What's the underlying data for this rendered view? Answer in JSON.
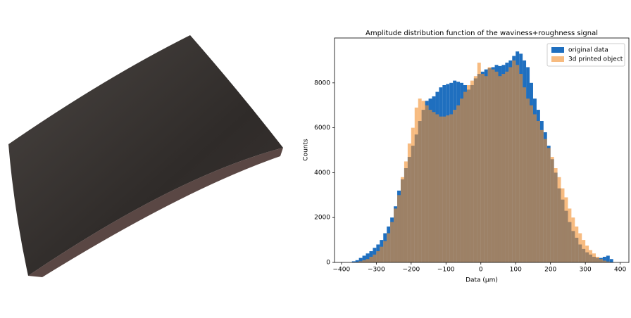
{
  "chart_data": {
    "type": "histogram",
    "title": "Amplitude distribution function of the waviness+roughness signal",
    "xlabel": "Data (μm)",
    "ylabel": "Counts",
    "bins": [
      -370,
      -360,
      -350,
      -340,
      -330,
      -320,
      -310,
      -300,
      -290,
      -280,
      -270,
      -260,
      -250,
      -240,
      -230,
      -220,
      -210,
      -200,
      -190,
      -180,
      -170,
      -160,
      -150,
      -140,
      -130,
      -120,
      -110,
      -100,
      -90,
      -80,
      -70,
      -60,
      -50,
      -40,
      -30,
      -20,
      -10,
      0,
      10,
      20,
      30,
      40,
      50,
      60,
      70,
      80,
      90,
      100,
      110,
      120,
      130,
      140,
      150,
      160,
      170,
      180,
      190,
      200,
      210,
      220,
      230,
      240,
      250,
      260,
      270,
      280,
      290,
      300,
      310,
      320,
      330,
      340,
      350,
      360,
      370,
      380
    ],
    "series": [
      {
        "name": "original data",
        "color": "#1f6fbf",
        "opacity": 1,
        "values": [
          50,
          100,
          200,
          300,
          400,
          500,
          650,
          800,
          1000,
          1300,
          1600,
          2000,
          2500,
          3200,
          3700,
          4200,
          4700,
          5200,
          5700,
          6300,
          6800,
          7200,
          7300,
          7400,
          7600,
          7800,
          7900,
          7950,
          8000,
          8100,
          8050,
          8000,
          7900,
          7700,
          7900,
          8200,
          8400,
          8500,
          8600,
          8650,
          8700,
          8800,
          8750,
          8800,
          8900,
          9000,
          9200,
          9400,
          9300,
          9000,
          8700,
          8000,
          7300,
          6800,
          6300,
          5800,
          5200,
          4600,
          4000,
          3300,
          2800,
          2300,
          1800,
          1400,
          1100,
          800,
          600,
          450,
          350,
          250,
          200,
          200,
          250,
          300,
          150
        ]
      },
      {
        "name": "3d printed object",
        "color": "#f28e2b",
        "opacity": 0.6,
        "values": [
          0,
          20,
          50,
          100,
          150,
          250,
          350,
          500,
          700,
          950,
          1300,
          1800,
          2400,
          3000,
          3800,
          4500,
          5300,
          6000,
          6900,
          7300,
          7200,
          7000,
          6800,
          6700,
          6600,
          6500,
          6500,
          6550,
          6600,
          6800,
          7000,
          7300,
          7600,
          7900,
          8100,
          8300,
          8900,
          8400,
          8300,
          8700,
          8600,
          8500,
          8300,
          8400,
          8500,
          8700,
          9000,
          8800,
          8400,
          7800,
          7300,
          7000,
          6600,
          6300,
          5900,
          5500,
          5100,
          4700,
          4200,
          3800,
          3300,
          2900,
          2400,
          2000,
          1600,
          1300,
          1000,
          750,
          550,
          400,
          250,
          150,
          80,
          40,
          10
        ]
      }
    ],
    "xlim": [
      -420,
      425
    ],
    "ylim": [
      0,
      10000
    ],
    "xticks": [
      {
        "value": -400,
        "label": "−400"
      },
      {
        "value": -300,
        "label": "−300"
      },
      {
        "value": -200,
        "label": "−200"
      },
      {
        "value": -100,
        "label": "−100"
      },
      0,
      100,
      200,
      300,
      400
    ],
    "yticks": [
      0,
      2000,
      4000,
      6000,
      8000
    ],
    "legend": "upper right"
  }
}
